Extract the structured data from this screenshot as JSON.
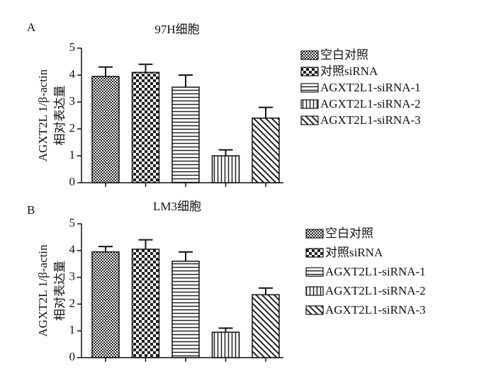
{
  "chart_data": [
    {
      "type": "bar",
      "panel": "A",
      "title": "97H细胞",
      "ylabel": [
        "AGXT2L 1/β-actin",
        "相对表达量"
      ],
      "categories": [
        null
      ],
      "ylim": [
        0,
        5
      ],
      "yticks": [
        0,
        1,
        2,
        3,
        4,
        5
      ],
      "series": [
        {
          "name": "空白对照",
          "pattern": "checker-fine",
          "values": [
            3.95
          ],
          "errors": [
            0.35
          ]
        },
        {
          "name": "对照siRNA",
          "pattern": "checker",
          "values": [
            4.1
          ],
          "errors": [
            0.3
          ]
        },
        {
          "name": "AGXT2L1-siRNA-1",
          "pattern": "hlines",
          "values": [
            3.55
          ],
          "errors": [
            0.45
          ]
        },
        {
          "name": "AGXT2L1-siRNA-2",
          "pattern": "vlines",
          "values": [
            1.0
          ],
          "errors": [
            0.22
          ]
        },
        {
          "name": "AGXT2L1-siRNA-3",
          "pattern": "diag",
          "values": [
            2.4
          ],
          "errors": [
            0.4
          ]
        }
      ]
    },
    {
      "type": "bar",
      "panel": "B",
      "title": "LM3细胞",
      "ylabel": [
        "AGXT2L 1/β-actin",
        "相对表达量"
      ],
      "categories": [
        null
      ],
      "ylim": [
        0,
        5
      ],
      "yticks": [
        0,
        1,
        2,
        3,
        4,
        5
      ],
      "series": [
        {
          "name": "空白对照",
          "pattern": "checker-fine",
          "values": [
            3.95
          ],
          "errors": [
            0.2
          ]
        },
        {
          "name": "对照siRNA",
          "pattern": "checker",
          "values": [
            4.05
          ],
          "errors": [
            0.35
          ]
        },
        {
          "name": "AGXT2L1-siRNA-1",
          "pattern": "hlines",
          "values": [
            3.6
          ],
          "errors": [
            0.35
          ]
        },
        {
          "name": "AGXT2L1-siRNA-2",
          "pattern": "vlines",
          "values": [
            0.95
          ],
          "errors": [
            0.15
          ]
        },
        {
          "name": "AGXT2L1-siRNA-3",
          "pattern": "diag",
          "values": [
            2.35
          ],
          "errors": [
            0.25
          ]
        }
      ]
    }
  ]
}
